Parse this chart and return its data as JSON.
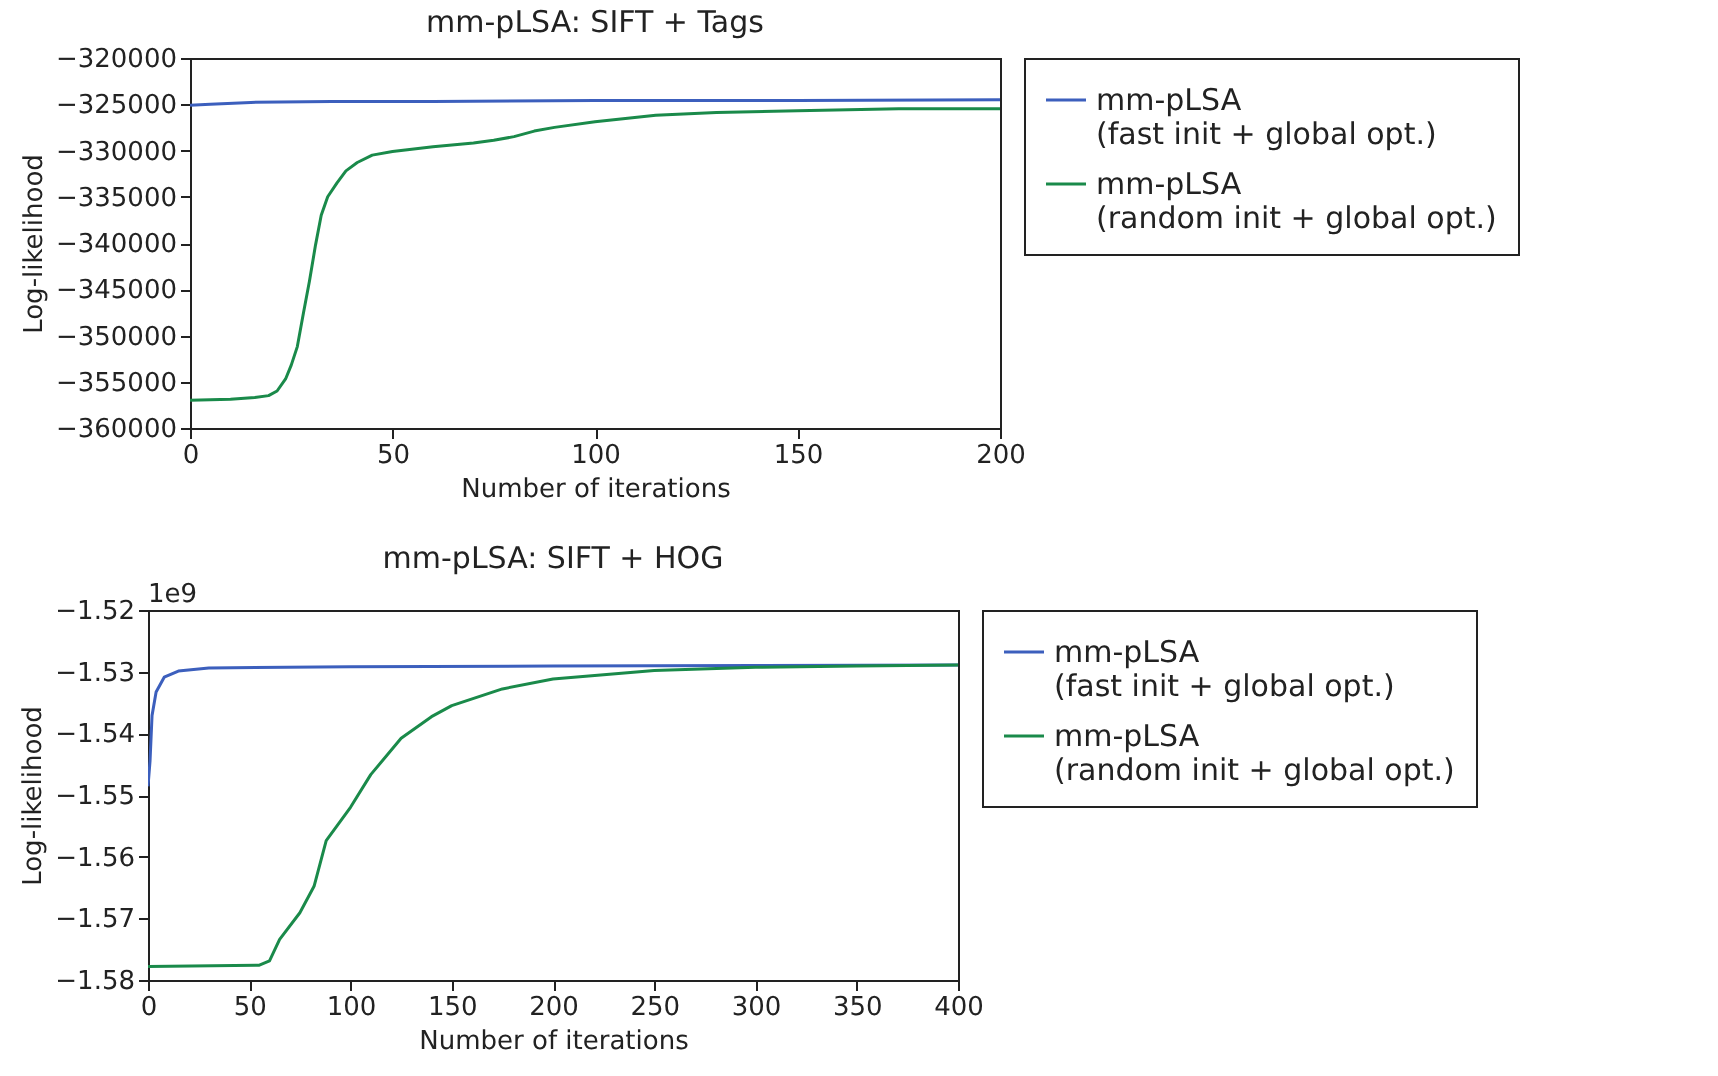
{
  "chart_data": [
    {
      "type": "line",
      "title": "mm-pLSA: SIFT + Tags",
      "xlabel": "Number of iterations",
      "ylabel": "Log-likelihood",
      "xlim": [
        0,
        200
      ],
      "xticks": [
        0,
        50,
        100,
        150,
        200
      ],
      "ylim": [
        -360000,
        -320000
      ],
      "yticks": [
        -360000,
        -355000,
        -350000,
        -345000,
        -340000,
        -335000,
        -330000,
        -325000,
        -320000
      ],
      "grid": false,
      "legend": "right",
      "series": [
        {
          "name": "mm-pLSA\n(fast init + global opt.)",
          "color": "#3c5fbd",
          "x": [
            0,
            5,
            15,
            35,
            60,
            100,
            150,
            200
          ],
          "values": [
            -325100,
            -325000,
            -324800,
            -324700,
            -324700,
            -324600,
            -324600,
            -324500
          ]
        },
        {
          "name": "mm-pLSA\n(random init + global opt.)",
          "color": "#1a8a4a",
          "x": [
            0,
            10,
            16,
            19.4,
            21.5,
            23.6,
            25,
            26.5,
            28,
            29.5,
            31,
            32.4,
            34,
            36.3,
            38.5,
            41.3,
            45,
            50,
            60,
            70,
            75,
            80,
            85,
            90,
            100,
            115,
            130,
            150,
            175,
            200
          ],
          "values": [
            -357000,
            -356900,
            -356700,
            -356500,
            -356000,
            -354700,
            -353200,
            -351200,
            -347600,
            -344100,
            -340200,
            -337000,
            -335000,
            -333500,
            -332200,
            -331300,
            -330500,
            -330100,
            -329600,
            -329200,
            -328900,
            -328500,
            -327900,
            -327500,
            -326900,
            -326200,
            -325900,
            -325700,
            -325500,
            -325500
          ]
        }
      ]
    },
    {
      "type": "line",
      "title": "mm-pLSA: SIFT + HOG",
      "xlabel": "Number of iterations",
      "ylabel": "Log-likelihood",
      "xlim": [
        0,
        400
      ],
      "xticks": [
        0,
        50,
        100,
        150,
        200,
        250,
        300,
        350,
        400
      ],
      "ylim": [
        -1.58,
        -1.52
      ],
      "yticks": [
        -1.58,
        -1.57,
        -1.56,
        -1.55,
        -1.54,
        -1.53,
        -1.52
      ],
      "grid": false,
      "legend": "right",
      "series": [
        {
          "name": "mm-pLSA\n(fast init + global opt.)",
          "color": "#3c5fbd",
          "x": [
            0,
            1,
            2,
            4,
            8,
            15,
            30,
            100,
            200,
            300,
            400
          ],
          "values": [
            -1.5486,
            -1.5445,
            -1.5371,
            -1.5333,
            -1.5309,
            -1.5299,
            -1.5294,
            -1.5292,
            -1.5291,
            -1.529,
            -1.5289
          ]
        },
        {
          "name": "mm-pLSA\n(random init + global opt.)",
          "color": "#1a8a4a",
          "x": [
            0,
            55,
            60,
            65,
            75,
            82,
            88,
            100,
            110,
            125,
            140,
            150,
            175,
            200,
            250,
            300,
            350,
            400
          ],
          "values": [
            -1.5778,
            -1.5776,
            -1.5769,
            -1.5734,
            -1.5691,
            -1.5648,
            -1.5574,
            -1.552,
            -1.5467,
            -1.5408,
            -1.5373,
            -1.5355,
            -1.5328,
            -1.5312,
            -1.5298,
            -1.5293,
            -1.5291,
            -1.5289
          ]
        }
      ],
      "annotations": [
        "1e9"
      ]
    }
  ]
}
